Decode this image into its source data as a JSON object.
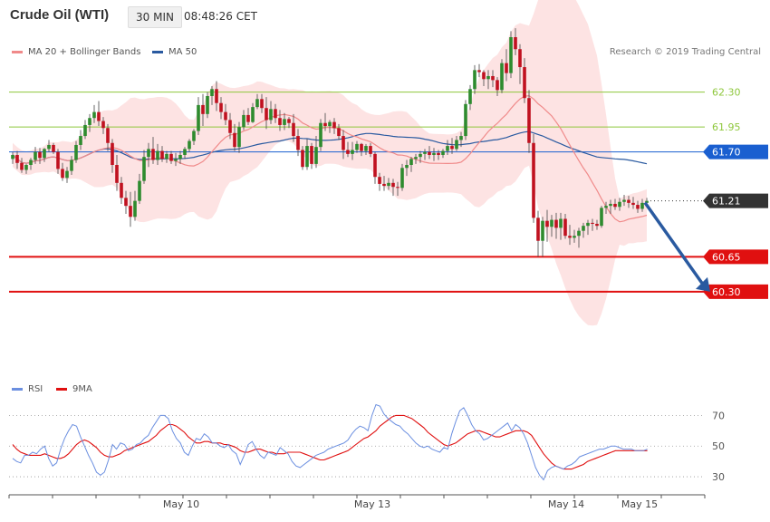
{
  "header": {
    "title": "Crude Oil (WTI)",
    "interval": "30 MIN",
    "time": "08:48:26 CET"
  },
  "legend": {
    "ma20": "MA 20 + Bollinger Bands",
    "ma50": "MA 50",
    "rsi": "RSI",
    "ma9": "9MA"
  },
  "copyright": "Research © 2019 Trading Central",
  "colors": {
    "up": "#2e8b2e",
    "down": "#c0111f",
    "band_fill": "#fde3e3",
    "ma20": "#f08a8a",
    "ma50": "#2a5aa0",
    "rsi": "#6b8fe0",
    "rsi_ma": "#e01010",
    "resistance": "#8ec73c",
    "support": "#e01010",
    "pivot": "#1a5fd0",
    "arrow": "#2a5aa0"
  },
  "chart_data": [
    {
      "type": "candlestick",
      "x_tick_labels": [
        "May 10",
        "May 13",
        "May 14",
        "May 15"
      ],
      "ylim": [
        59.5,
        62.95
      ],
      "last_price": 61.21,
      "levels": [
        {
          "label": "62.30",
          "value": 62.3,
          "kind": "resistance"
        },
        {
          "label": "61.95",
          "value": 61.95,
          "kind": "resistance"
        },
        {
          "label": "61.70",
          "value": 61.7,
          "kind": "pivot"
        },
        {
          "label": "60.65",
          "value": 60.65,
          "kind": "support"
        },
        {
          "label": "60.30",
          "value": 60.3,
          "kind": "support"
        }
      ],
      "forecast_arrow": {
        "from": {
          "bar": 139,
          "value": 61.21
        },
        "to": {
          "bar": 152,
          "value": 60.3
        }
      },
      "ohlc": [
        [
          61.63,
          61.7,
          61.58,
          61.67
        ],
        [
          61.67,
          61.71,
          61.53,
          61.59
        ],
        [
          61.59,
          61.64,
          61.49,
          61.52
        ],
        [
          61.52,
          61.58,
          61.48,
          61.57
        ],
        [
          61.57,
          61.64,
          61.52,
          61.62
        ],
        [
          61.62,
          61.75,
          61.58,
          61.7
        ],
        [
          61.7,
          61.74,
          61.58,
          61.64
        ],
        [
          61.64,
          61.74,
          61.6,
          61.73
        ],
        [
          61.73,
          61.82,
          61.7,
          61.77
        ],
        [
          61.77,
          61.79,
          61.68,
          61.7
        ],
        [
          61.7,
          61.73,
          61.48,
          61.53
        ],
        [
          61.53,
          61.59,
          61.41,
          61.44
        ],
        [
          61.44,
          61.55,
          61.39,
          61.51
        ],
        [
          61.51,
          61.66,
          61.47,
          61.62
        ],
        [
          61.62,
          61.81,
          61.59,
          61.77
        ],
        [
          61.77,
          61.92,
          61.72,
          61.86
        ],
        [
          61.86,
          62.02,
          61.83,
          61.97
        ],
        [
          61.97,
          62.08,
          61.9,
          62.04
        ],
        [
          62.04,
          62.17,
          61.99,
          62.1
        ],
        [
          62.1,
          62.21,
          61.96,
          62.01
        ],
        [
          62.01,
          62.05,
          61.88,
          61.94
        ],
        [
          61.94,
          61.98,
          61.71,
          61.79
        ],
        [
          61.79,
          61.83,
          61.49,
          61.57
        ],
        [
          61.57,
          61.67,
          61.31,
          61.39
        ],
        [
          61.39,
          61.45,
          61.18,
          61.24
        ],
        [
          61.24,
          61.31,
          61.08,
          61.16
        ],
        [
          61.16,
          61.3,
          60.95,
          61.05
        ],
        [
          61.05,
          61.31,
          61.01,
          61.21
        ],
        [
          61.21,
          61.48,
          61.18,
          61.41
        ],
        [
          61.41,
          61.72,
          61.38,
          61.65
        ],
        [
          61.65,
          61.79,
          61.55,
          61.73
        ],
        [
          61.73,
          61.85,
          61.58,
          61.62
        ],
        [
          61.62,
          61.78,
          61.57,
          61.71
        ],
        [
          61.71,
          61.76,
          61.6,
          61.63
        ],
        [
          61.63,
          61.71,
          61.59,
          61.68
        ],
        [
          61.68,
          61.71,
          61.58,
          61.61
        ],
        [
          61.61,
          61.69,
          61.56,
          61.63
        ],
        [
          61.63,
          61.71,
          61.58,
          61.67
        ],
        [
          61.67,
          61.75,
          61.63,
          61.73
        ],
        [
          61.73,
          61.83,
          61.7,
          61.81
        ],
        [
          61.81,
          61.93,
          61.77,
          61.91
        ],
        [
          61.91,
          62.25,
          61.87,
          62.17
        ],
        [
          62.17,
          62.28,
          61.96,
          62.08
        ],
        [
          62.08,
          62.3,
          62.04,
          62.26
        ],
        [
          62.26,
          62.36,
          62.17,
          62.33
        ],
        [
          62.33,
          62.41,
          62.11,
          62.19
        ],
        [
          62.19,
          62.25,
          62.03,
          62.1
        ],
        [
          62.1,
          62.18,
          61.97,
          62.02
        ],
        [
          62.02,
          62.09,
          61.83,
          61.89
        ],
        [
          61.89,
          61.98,
          61.71,
          61.75
        ],
        [
          61.75,
          62.0,
          61.69,
          61.95
        ],
        [
          61.95,
          62.12,
          61.92,
          62.07
        ],
        [
          62.07,
          62.14,
          61.97,
          62.0
        ],
        [
          62.0,
          62.19,
          61.99,
          62.15
        ],
        [
          62.15,
          62.28,
          62.13,
          62.23
        ],
        [
          62.23,
          62.28,
          62.09,
          62.14
        ],
        [
          62.14,
          62.25,
          61.93,
          62.02
        ],
        [
          62.02,
          62.21,
          61.98,
          62.13
        ],
        [
          62.13,
          62.18,
          61.99,
          62.04
        ],
        [
          62.04,
          62.12,
          61.91,
          61.97
        ],
        [
          61.97,
          62.09,
          61.92,
          62.03
        ],
        [
          62.03,
          62.05,
          61.94,
          61.99
        ],
        [
          61.99,
          62.08,
          61.8,
          61.86
        ],
        [
          61.86,
          61.93,
          61.66,
          61.72
        ],
        [
          61.72,
          61.76,
          61.52,
          61.55
        ],
        [
          61.55,
          61.83,
          61.52,
          61.76
        ],
        [
          61.76,
          61.79,
          61.53,
          61.58
        ],
        [
          61.58,
          61.86,
          61.54,
          61.75
        ],
        [
          61.75,
          62.03,
          61.71,
          61.99
        ],
        [
          61.99,
          62.09,
          61.91,
          61.96
        ],
        [
          61.96,
          62.02,
          61.89,
          62.0
        ],
        [
          62.0,
          62.04,
          61.88,
          61.94
        ],
        [
          61.94,
          61.98,
          61.82,
          61.86
        ],
        [
          61.86,
          61.92,
          61.63,
          61.72
        ],
        [
          61.72,
          61.8,
          61.65,
          61.68
        ],
        [
          61.68,
          61.8,
          61.62,
          61.72
        ],
        [
          61.72,
          61.81,
          61.69,
          61.78
        ],
        [
          61.78,
          61.79,
          61.66,
          61.71
        ],
        [
          61.71,
          61.78,
          61.67,
          61.76
        ],
        [
          61.76,
          61.79,
          61.65,
          61.68
        ],
        [
          61.68,
          61.7,
          61.38,
          61.45
        ],
        [
          61.45,
          61.49,
          61.31,
          61.38
        ],
        [
          61.38,
          61.46,
          61.31,
          61.36
        ],
        [
          61.36,
          61.44,
          61.32,
          61.39
        ],
        [
          61.39,
          61.43,
          61.26,
          61.35
        ],
        [
          61.35,
          61.4,
          61.26,
          61.34
        ],
        [
          61.34,
          61.58,
          61.31,
          61.54
        ],
        [
          61.54,
          61.62,
          61.46,
          61.57
        ],
        [
          61.57,
          61.65,
          61.5,
          61.63
        ],
        [
          61.63,
          61.68,
          61.58,
          61.65
        ],
        [
          61.65,
          61.71,
          61.59,
          61.68
        ],
        [
          61.68,
          61.73,
          61.62,
          61.7
        ],
        [
          61.7,
          61.76,
          61.63,
          61.67
        ],
        [
          61.67,
          61.74,
          61.61,
          61.69
        ],
        [
          61.69,
          61.72,
          61.62,
          61.67
        ],
        [
          61.67,
          61.73,
          61.64,
          61.71
        ],
        [
          61.71,
          61.82,
          61.67,
          61.76
        ],
        [
          61.76,
          61.84,
          61.68,
          61.73
        ],
        [
          61.73,
          61.86,
          61.71,
          61.82
        ],
        [
          61.82,
          61.9,
          61.75,
          61.86
        ],
        [
          61.86,
          62.22,
          61.82,
          62.18
        ],
        [
          62.18,
          62.37,
          62.12,
          62.33
        ],
        [
          62.33,
          62.57,
          62.28,
          62.52
        ],
        [
          62.52,
          62.58,
          62.45,
          62.5
        ],
        [
          62.5,
          62.52,
          62.36,
          62.43
        ],
        [
          62.43,
          62.52,
          62.33,
          62.46
        ],
        [
          62.46,
          62.52,
          62.35,
          62.42
        ],
        [
          62.42,
          62.45,
          62.26,
          62.32
        ],
        [
          62.32,
          62.63,
          62.29,
          62.59
        ],
        [
          62.59,
          62.73,
          62.41,
          62.49
        ],
        [
          62.49,
          62.91,
          62.44,
          62.85
        ],
        [
          62.85,
          62.94,
          62.67,
          62.73
        ],
        [
          62.73,
          62.78,
          62.38,
          62.55
        ],
        [
          62.55,
          62.64,
          62.19,
          62.24
        ],
        [
          62.24,
          62.32,
          61.69,
          61.79
        ],
        [
          61.79,
          61.88,
          60.99,
          61.04
        ],
        [
          61.04,
          61.11,
          60.65,
          60.81
        ],
        [
          60.81,
          61.05,
          60.65,
          61.01
        ],
        [
          61.01,
          61.12,
          60.8,
          60.95
        ],
        [
          60.95,
          61.07,
          60.85,
          61.02
        ],
        [
          61.02,
          61.09,
          60.83,
          60.94
        ],
        [
          60.94,
          61.09,
          60.82,
          61.03
        ],
        [
          61.03,
          61.08,
          60.83,
          60.86
        ],
        [
          60.86,
          60.97,
          60.77,
          60.84
        ],
        [
          60.84,
          60.92,
          60.79,
          60.86
        ],
        [
          60.86,
          60.94,
          60.74,
          60.91
        ],
        [
          60.91,
          60.99,
          60.84,
          60.96
        ],
        [
          60.96,
          61.02,
          60.87,
          60.99
        ],
        [
          60.99,
          61.03,
          60.91,
          60.98
        ],
        [
          60.98,
          61.02,
          60.92,
          60.96
        ],
        [
          60.96,
          61.16,
          60.94,
          61.14
        ],
        [
          61.14,
          61.2,
          61.08,
          61.16
        ],
        [
          61.16,
          61.22,
          61.08,
          61.18
        ],
        [
          61.18,
          61.23,
          61.12,
          61.15
        ],
        [
          61.15,
          61.24,
          61.11,
          61.2
        ],
        [
          61.2,
          61.27,
          61.16,
          61.22
        ],
        [
          61.22,
          61.26,
          61.14,
          61.19
        ],
        [
          61.19,
          61.25,
          61.13,
          61.17
        ],
        [
          61.17,
          61.21,
          61.09,
          61.13
        ],
        [
          61.13,
          61.23,
          61.1,
          61.19
        ],
        [
          61.19,
          61.24,
          61.15,
          61.21
        ]
      ]
    },
    {
      "type": "line",
      "title": "RSI",
      "ylim": [
        20,
        85
      ],
      "y_tick_labels": [
        "70",
        "50",
        "30"
      ],
      "series": [
        {
          "name": "RSI",
          "values": [
            42,
            40,
            39,
            44,
            44,
            46,
            45,
            48,
            50,
            42,
            37,
            39,
            48,
            55,
            60,
            64,
            63,
            56,
            50,
            44,
            39,
            33,
            31,
            33,
            41,
            51,
            48,
            52,
            51,
            47,
            48,
            51,
            52,
            55,
            57,
            62,
            66,
            70,
            70,
            68,
            60,
            55,
            52,
            46,
            44,
            50,
            55,
            54,
            58,
            56,
            52,
            52,
            50,
            49,
            51,
            47,
            45,
            38,
            44,
            51,
            53,
            48,
            44,
            42,
            46,
            45,
            44,
            49,
            47,
            45,
            40,
            37,
            36,
            38,
            40,
            42,
            44,
            45,
            46,
            48,
            49,
            50,
            51,
            52,
            54,
            58,
            61,
            63,
            62,
            60,
            70,
            77,
            76,
            71,
            68,
            66,
            64,
            63,
            60,
            58,
            55,
            52,
            50,
            49,
            50,
            48,
            47,
            46,
            49,
            48,
            58,
            66,
            73,
            75,
            70,
            64,
            60,
            58,
            54,
            55,
            57,
            59,
            61,
            63,
            65,
            60,
            64,
            62,
            58,
            52,
            44,
            36,
            31,
            28,
            34,
            36,
            37,
            36,
            35,
            37,
            38,
            40,
            43,
            44,
            45,
            46,
            47,
            48,
            48,
            49,
            50,
            50,
            49,
            48,
            48,
            48,
            47,
            47,
            47,
            48
          ]
        },
        {
          "name": "9MA",
          "values": [
            51,
            48,
            46,
            45,
            44,
            44,
            44,
            44,
            45,
            44,
            43,
            42,
            42,
            43,
            45,
            48,
            51,
            53,
            54,
            53,
            51,
            49,
            46,
            44,
            43,
            43,
            44,
            45,
            47,
            48,
            49,
            50,
            51,
            52,
            53,
            55,
            57,
            60,
            62,
            64,
            64,
            63,
            61,
            59,
            56,
            54,
            52,
            52,
            53,
            53,
            52,
            52,
            52,
            51,
            51,
            50,
            49,
            47,
            46,
            46,
            47,
            48,
            48,
            47,
            46,
            46,
            45,
            45,
            45,
            46,
            46,
            46,
            46,
            45,
            44,
            43,
            42,
            41,
            41,
            42,
            43,
            44,
            45,
            46,
            47,
            49,
            51,
            53,
            55,
            56,
            58,
            60,
            63,
            65,
            67,
            69,
            70,
            70,
            70,
            69,
            68,
            66,
            64,
            62,
            59,
            57,
            55,
            53,
            51,
            50,
            51,
            52,
            54,
            56,
            58,
            59,
            60,
            60,
            59,
            58,
            57,
            56,
            56,
            57,
            58,
            59,
            60,
            60,
            60,
            59,
            57,
            53,
            49,
            45,
            42,
            39,
            37,
            36,
            35,
            35,
            35,
            36,
            37,
            38,
            40,
            41,
            42,
            43,
            44,
            45,
            46,
            47,
            47,
            47,
            47,
            47,
            47,
            47,
            47,
            47
          ]
        }
      ]
    }
  ]
}
